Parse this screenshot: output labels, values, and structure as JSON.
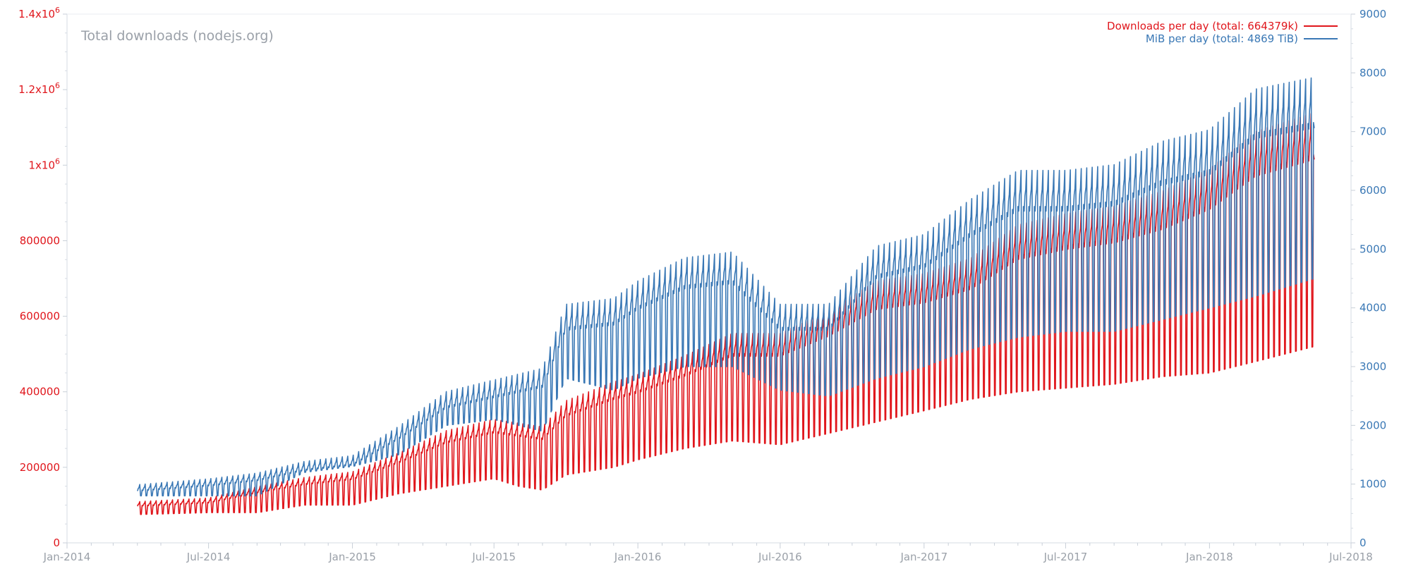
{
  "chart_data": {
    "type": "line",
    "title": "Total downloads (nodejs.org)",
    "x": [
      "2014-04-01",
      "2014-07-01",
      "2014-09-01",
      "2014-11-01",
      "2015-01-01",
      "2015-03-01",
      "2015-05-01",
      "2015-07-01",
      "2015-08-01",
      "2015-09-01",
      "2015-10-01",
      "2015-12-01",
      "2016-01-01",
      "2016-03-01",
      "2016-05-01",
      "2016-07-01",
      "2016-09-01",
      "2016-11-01",
      "2017-01-01",
      "2017-03-01",
      "2017-05-01",
      "2017-07-01",
      "2017-09-01",
      "2017-11-01",
      "2018-01-01",
      "2018-03-01",
      "2018-05-15"
    ],
    "xlim": [
      "2014-01-01",
      "2018-07-01"
    ],
    "x_tick_labels": [
      "Jan-2014",
      "Jul-2014",
      "Jan-2015",
      "Jul-2015",
      "Jan-2016",
      "Jul-2016",
      "Jan-2017",
      "Jul-2017",
      "Jan-2018",
      "Jul-2018"
    ],
    "y_axes": [
      {
        "side": "left",
        "color": "#e0161c",
        "lim": [
          0,
          1400000
        ],
        "tick_labels": [
          "0",
          "200000",
          "400000",
          "600000",
          "800000",
          "1x10^6",
          "1.2x10^6",
          "1.4x10^6"
        ]
      },
      {
        "side": "right",
        "color": "#3a78b5",
        "lim": [
          0,
          9000
        ],
        "tick_labels": [
          "0",
          "1000",
          "2000",
          "3000",
          "4000",
          "5000",
          "6000",
          "7000",
          "8000",
          "9000"
        ]
      }
    ],
    "series": [
      {
        "name": "Downloads per day (total: 664379k)",
        "axis": "left",
        "color": "#e0161c",
        "style": "weekly-oscillating",
        "peak": [
          110000,
          120000,
          150000,
          175000,
          190000,
          240000,
          300000,
          330000,
          320000,
          310000,
          380000,
          430000,
          450000,
          500000,
          560000,
          560000,
          620000,
          700000,
          720000,
          760000,
          850000,
          880000,
          900000,
          940000,
          1000000,
          1100000,
          1150000
        ],
        "trough": [
          75000,
          80000,
          80000,
          100000,
          100000,
          130000,
          150000,
          170000,
          150000,
          140000,
          180000,
          200000,
          220000,
          250000,
          270000,
          260000,
          290000,
          320000,
          350000,
          380000,
          400000,
          410000,
          420000,
          440000,
          450000,
          480000,
          520000
        ]
      },
      {
        "name": "MiB per day (total: 4869 TiB)",
        "axis": "right",
        "color": "#3a78b5",
        "style": "weekly-oscillating",
        "peak": [
          1000,
          1100,
          1200,
          1400,
          1500,
          2000,
          2600,
          2800,
          2900,
          3000,
          4100,
          4200,
          4500,
          4900,
          5000,
          4100,
          4100,
          5100,
          5300,
          5900,
          6400,
          6400,
          6500,
          6900,
          7100,
          7800,
          8000
        ],
        "trough": [
          800,
          800,
          800,
          1200,
          1300,
          1500,
          2000,
          2100,
          2000,
          1900,
          2800,
          2600,
          2800,
          3000,
          3000,
          2600,
          2500,
          2800,
          3000,
          3300,
          3500,
          3600,
          3600,
          3800,
          4000,
          4200,
          4500
        ]
      }
    ],
    "grid": false,
    "legend": "top-right"
  }
}
